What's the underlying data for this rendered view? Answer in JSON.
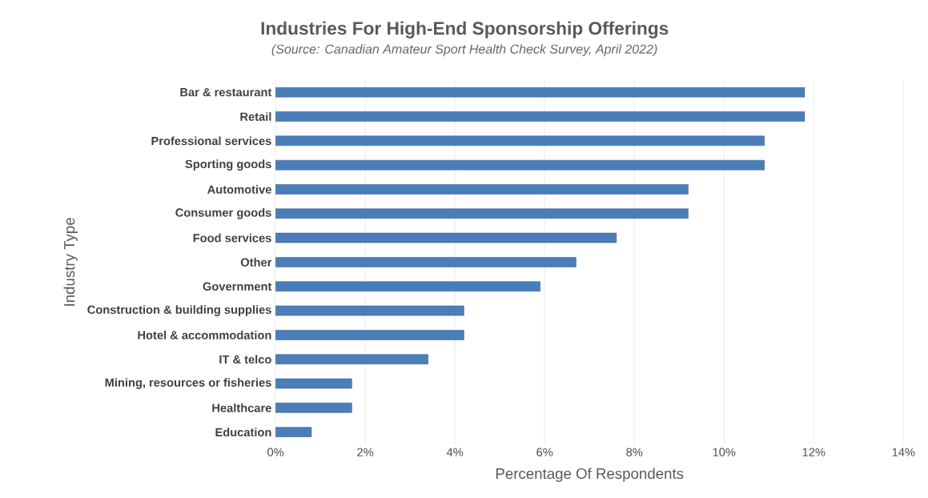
{
  "chart_data": {
    "type": "bar",
    "orientation": "horizontal",
    "title": "Industries For High-End Sponsorship Offerings",
    "subtitle": "(Source: Canadian Amateur Sport Health Check Survey, April 2022)",
    "xlabel": "Percentage Of Respondents",
    "ylabel": "Industry Type",
    "categories": [
      "Bar & restaurant",
      "Retail",
      "Professional services",
      "Sporting goods",
      "Automotive",
      "Consumer goods",
      "Food services",
      "Other",
      "Government",
      "Construction & building supplies",
      "Hotel & accommodation",
      "IT & telco",
      "Mining, resources or fisheries",
      "Healthcare",
      "Education"
    ],
    "values": [
      11.8,
      11.8,
      10.9,
      10.9,
      9.2,
      9.2,
      7.6,
      6.7,
      5.9,
      4.2,
      4.2,
      3.4,
      1.7,
      1.7,
      0.8
    ],
    "color": "#4a7ebb",
    "xlim": [
      0,
      14
    ],
    "xticks": [
      {
        "value": 0,
        "label": "0%"
      },
      {
        "value": 2,
        "label": "2%"
      },
      {
        "value": 4,
        "label": "4%"
      },
      {
        "value": 6,
        "label": "6%"
      },
      {
        "value": 8,
        "label": "8%"
      },
      {
        "value": 10,
        "label": "10%"
      },
      {
        "value": 12,
        "label": "12%"
      },
      {
        "value": 14,
        "label": "14%"
      }
    ],
    "grid": "x"
  }
}
